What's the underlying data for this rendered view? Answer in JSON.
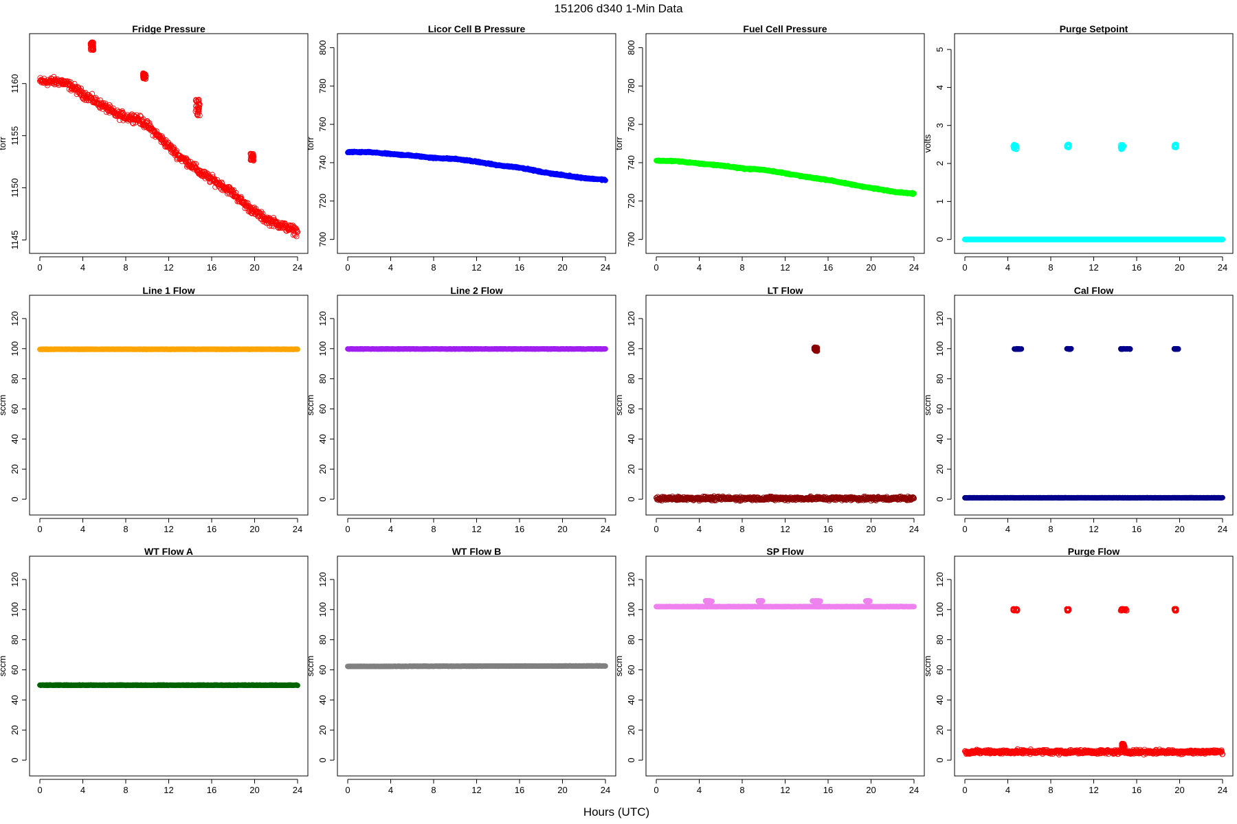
{
  "figure": {
    "title": "151206   d340   1-Min Data",
    "xlabel": "Hours (UTC)"
  },
  "chart_data": [
    {
      "id": "fridge-pressure",
      "type": "scatter",
      "title": "Fridge Pressure",
      "ylabel": "torr",
      "xlim": [
        0,
        24
      ],
      "ylim": [
        1144.5,
        1164
      ],
      "xticks": [
        0,
        4,
        8,
        12,
        16,
        20,
        24
      ],
      "yticks": [
        1145,
        1150,
        1155,
        1160
      ],
      "marker": "open",
      "series": [
        {
          "color": "#ff0000",
          "trend": [
            [
              0,
              1160.2
            ],
            [
              2,
              1160.2
            ],
            [
              3,
              1159.7
            ],
            [
              4,
              1159.0
            ],
            [
              5,
              1158.4
            ],
            [
              6,
              1157.8
            ],
            [
              7,
              1157.1
            ],
            [
              8,
              1156.8
            ],
            [
              9,
              1156.7
            ],
            [
              10,
              1156.0
            ],
            [
              11,
              1155.0
            ],
            [
              12,
              1154.0
            ],
            [
              13,
              1153.0
            ],
            [
              14,
              1152.3
            ],
            [
              15,
              1151.4
            ],
            [
              16,
              1150.8
            ],
            [
              17,
              1150.2
            ],
            [
              18,
              1149.5
            ],
            [
              19,
              1148.5
            ],
            [
              20,
              1147.7
            ],
            [
              21,
              1147.0
            ],
            [
              22,
              1146.6
            ],
            [
              23,
              1146.2
            ],
            [
              24,
              1145.8
            ]
          ],
          "noise": 0.35,
          "clusters": [
            {
              "x": [
                4.7,
                5.0
              ],
              "y": [
                1163.2,
                1164.0
              ]
            },
            {
              "x": [
                9.6,
                9.9
              ],
              "y": [
                1160.4,
                1161.0
              ]
            },
            {
              "x": [
                14.5,
                14.9
              ],
              "y": [
                1156.8,
                1158.5
              ]
            },
            {
              "x": [
                19.6,
                19.9
              ],
              "y": [
                1152.6,
                1153.3
              ]
            }
          ]
        }
      ]
    },
    {
      "id": "licor-cell-b-pressure",
      "type": "scatter",
      "title": "Licor Cell B Pressure",
      "ylabel": "torr",
      "xlim": [
        0,
        24
      ],
      "ylim": [
        697,
        803
      ],
      "xticks": [
        0,
        4,
        8,
        12,
        16,
        20,
        24
      ],
      "yticks": [
        700,
        720,
        740,
        760,
        780,
        800
      ],
      "marker": "filled",
      "series": [
        {
          "color": "#0000ff",
          "trend": [
            [
              0,
              745.5
            ],
            [
              2,
              745.5
            ],
            [
              4,
              744.5
            ],
            [
              6,
              743.7
            ],
            [
              8,
              742.5
            ],
            [
              10,
              742.0
            ],
            [
              12,
              740.5
            ],
            [
              14,
              738.6
            ],
            [
              16,
              737.5
            ],
            [
              18,
              735.2
            ],
            [
              20,
              733.5
            ],
            [
              22,
              732.0
            ],
            [
              24,
              731.0
            ]
          ],
          "noise": 0.3,
          "clusters": []
        }
      ]
    },
    {
      "id": "fuel-cell-pressure",
      "type": "scatter",
      "title": "Fuel Cell Pressure",
      "ylabel": "torr",
      "xlim": [
        0,
        24
      ],
      "ylim": [
        697,
        803
      ],
      "xticks": [
        0,
        4,
        8,
        12,
        16,
        20,
        24
      ],
      "yticks": [
        700,
        720,
        740,
        760,
        780,
        800
      ],
      "marker": "filled",
      "series": [
        {
          "color": "#00ff00",
          "trend": [
            [
              0,
              741.0
            ],
            [
              2,
              740.8
            ],
            [
              4,
              739.5
            ],
            [
              6,
              738.6
            ],
            [
              8,
              737.0
            ],
            [
              10,
              736.3
            ],
            [
              12,
              734.5
            ],
            [
              14,
              732.5
            ],
            [
              16,
              731.0
            ],
            [
              18,
              728.8
            ],
            [
              20,
              726.8
            ],
            [
              22,
              725.0
            ],
            [
              24,
              723.8
            ]
          ],
          "noise": 0.3,
          "clusters": []
        }
      ]
    },
    {
      "id": "purge-setpoint",
      "type": "scatter",
      "title": "Purge Setpoint",
      "ylabel": "volts",
      "xlim": [
        0,
        24
      ],
      "ylim": [
        -0.15,
        5.2
      ],
      "xticks": [
        0,
        4,
        8,
        12,
        16,
        20,
        24
      ],
      "yticks": [
        0,
        1,
        2,
        3,
        4,
        5
      ],
      "marker": "open",
      "series": [
        {
          "color": "#00ffff",
          "trend": [
            [
              0,
              0
            ],
            [
              24,
              0
            ]
          ],
          "noise": 0,
          "clusters": [
            {
              "x": [
                4.5,
                4.8
              ],
              "y": [
                2.37,
                2.5
              ]
            },
            {
              "x": [
                9.5,
                9.7
              ],
              "y": [
                2.42,
                2.5
              ]
            },
            {
              "x": [
                14.5,
                14.8
              ],
              "y": [
                2.37,
                2.5
              ]
            },
            {
              "x": [
                19.5,
                19.7
              ],
              "y": [
                2.42,
                2.5
              ]
            }
          ]
        }
      ]
    },
    {
      "id": "line-1-flow",
      "type": "scatter",
      "title": "Line 1 Flow",
      "ylabel": "sccm",
      "xlim": [
        0,
        24
      ],
      "ylim": [
        -5,
        130
      ],
      "xticks": [
        0,
        4,
        8,
        12,
        16,
        20,
        24
      ],
      "yticks": [
        0,
        20,
        40,
        60,
        80,
        100,
        120
      ],
      "marker": "filled",
      "series": [
        {
          "color": "#ffa500",
          "trend": [
            [
              0,
              99.6
            ],
            [
              24,
              99.6
            ]
          ],
          "noise": 0.1,
          "clusters": []
        }
      ]
    },
    {
      "id": "line-2-flow",
      "type": "scatter",
      "title": "Line 2 Flow",
      "ylabel": "sccm",
      "xlim": [
        0,
        24
      ],
      "ylim": [
        -5,
        130
      ],
      "xticks": [
        0,
        4,
        8,
        12,
        16,
        20,
        24
      ],
      "yticks": [
        0,
        20,
        40,
        60,
        80,
        100,
        120
      ],
      "marker": "filled",
      "series": [
        {
          "color": "#a020f0",
          "trend": [
            [
              0,
              99.8
            ],
            [
              24,
              99.8
            ]
          ],
          "noise": 0.1,
          "clusters": []
        }
      ]
    },
    {
      "id": "lt-flow",
      "type": "scatter",
      "title": "LT Flow",
      "ylabel": "sccm",
      "xlim": [
        0,
        24
      ],
      "ylim": [
        -5,
        130
      ],
      "xticks": [
        0,
        4,
        8,
        12,
        16,
        20,
        24
      ],
      "yticks": [
        0,
        20,
        40,
        60,
        80,
        100,
        120
      ],
      "marker": "open",
      "series": [
        {
          "color": "#8b0000",
          "trend": [
            [
              0,
              0.5
            ],
            [
              24,
              0.5
            ]
          ],
          "noise": 1.1,
          "clusters": [
            {
              "x": [
                14.7,
                15.0
              ],
              "y": [
                98.0,
                101.0
              ]
            }
          ]
        }
      ]
    },
    {
      "id": "cal-flow",
      "type": "scatter",
      "title": "Cal Flow",
      "ylabel": "sccm",
      "xlim": [
        0,
        24
      ],
      "ylim": [
        -5,
        130
      ],
      "xticks": [
        0,
        4,
        8,
        12,
        16,
        20,
        24
      ],
      "yticks": [
        0,
        20,
        40,
        60,
        80,
        100,
        120
      ],
      "marker": "filled",
      "series": [
        {
          "color": "#00008b",
          "trend": [
            [
              0,
              1.0
            ],
            [
              24,
              1.0
            ]
          ],
          "noise": 0.05,
          "clusters": [
            {
              "x": [
                4.6,
                5.3
              ],
              "y": [
                99.6,
                100.0
              ]
            },
            {
              "x": [
                9.5,
                9.9
              ],
              "y": [
                99.6,
                100.0
              ]
            },
            {
              "x": [
                14.5,
                15.4
              ],
              "y": [
                99.6,
                100.0
              ]
            },
            {
              "x": [
                19.5,
                19.9
              ],
              "y": [
                99.6,
                100.0
              ]
            }
          ]
        }
      ]
    },
    {
      "id": "wt-flow-a",
      "type": "scatter",
      "title": "WT Flow A",
      "ylabel": "sccm",
      "xlim": [
        0,
        24
      ],
      "ylim": [
        -5,
        130
      ],
      "xticks": [
        0,
        4,
        8,
        12,
        16,
        20,
        24
      ],
      "yticks": [
        0,
        20,
        40,
        60,
        80,
        100,
        120
      ],
      "marker": "filled",
      "series": [
        {
          "color": "#006400",
          "trend": [
            [
              0,
              49.8
            ],
            [
              24,
              49.8
            ]
          ],
          "noise": 0.15,
          "clusters": []
        }
      ]
    },
    {
      "id": "wt-flow-b",
      "type": "scatter",
      "title": "WT Flow B",
      "ylabel": "sccm",
      "xlim": [
        0,
        24
      ],
      "ylim": [
        -5,
        130
      ],
      "xticks": [
        0,
        4,
        8,
        12,
        16,
        20,
        24
      ],
      "yticks": [
        0,
        20,
        40,
        60,
        80,
        100,
        120
      ],
      "marker": "filled",
      "series": [
        {
          "color": "#808080",
          "trend": [
            [
              0,
              62.3
            ],
            [
              24,
              62.6
            ]
          ],
          "noise": 0.1,
          "clusters": []
        }
      ]
    },
    {
      "id": "sp-flow",
      "type": "scatter",
      "title": "SP Flow",
      "ylabel": "sccm",
      "xlim": [
        0,
        24
      ],
      "ylim": [
        -5,
        130
      ],
      "xticks": [
        0,
        4,
        8,
        12,
        16,
        20,
        24
      ],
      "yticks": [
        0,
        20,
        40,
        60,
        80,
        100,
        120
      ],
      "marker": "filled",
      "series": [
        {
          "color": "#ee82ee",
          "trend": [
            [
              0,
              102.0
            ],
            [
              24,
              102.0
            ]
          ],
          "noise": 0.1,
          "clusters": [
            {
              "x": [
                4.5,
                5.2
              ],
              "y": [
                105.5,
                105.9
              ]
            },
            {
              "x": [
                9.5,
                9.9
              ],
              "y": [
                105.5,
                105.9
              ]
            },
            {
              "x": [
                14.5,
                15.3
              ],
              "y": [
                105.5,
                105.9
              ]
            },
            {
              "x": [
                19.5,
                19.9
              ],
              "y": [
                105.5,
                105.9
              ]
            }
          ]
        }
      ]
    },
    {
      "id": "purge-flow",
      "type": "scatter",
      "title": "Purge Flow",
      "ylabel": "sccm",
      "xlim": [
        0,
        24
      ],
      "ylim": [
        -5,
        130
      ],
      "xticks": [
        0,
        4,
        8,
        12,
        16,
        20,
        24
      ],
      "yticks": [
        0,
        20,
        40,
        60,
        80,
        100,
        120
      ],
      "marker": "open",
      "series": [
        {
          "color": "#ff0000",
          "trend": [
            [
              0,
              5.5
            ],
            [
              24,
              5.5
            ]
          ],
          "noise": 1.2,
          "clusters": [
            {
              "x": [
                4.5,
                4.9
              ],
              "y": [
                99.2,
                100.5
              ]
            },
            {
              "x": [
                9.5,
                9.7
              ],
              "y": [
                99.2,
                100.5
              ]
            },
            {
              "x": [
                14.5,
                15.1
              ],
              "y": [
                99.2,
                100.5
              ]
            },
            {
              "x": [
                19.5,
                19.7
              ],
              "y": [
                99.2,
                100.5
              ]
            },
            {
              "x": [
                14.6,
                14.9
              ],
              "y": [
                8.0,
                11.0
              ]
            }
          ]
        }
      ]
    }
  ]
}
